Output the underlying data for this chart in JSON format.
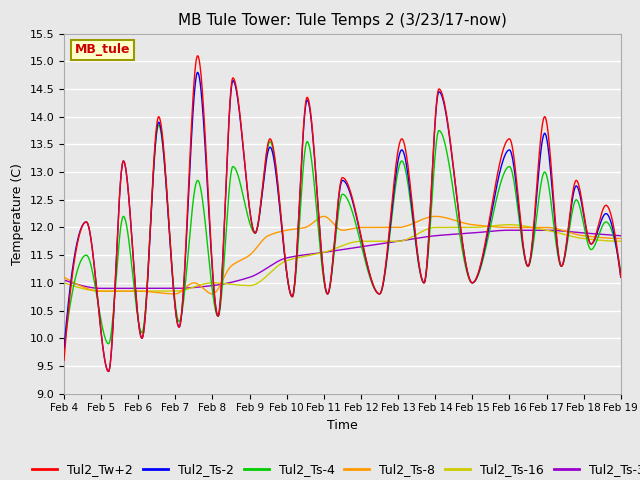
{
  "title": "MB Tule Tower: Tule Temps 2 (3/23/17-now)",
  "xlabel": "Time",
  "ylabel": "Temperature (C)",
  "ylim": [
    9.0,
    15.5
  ],
  "yticks": [
    9.0,
    9.5,
    10.0,
    10.5,
    11.0,
    11.5,
    12.0,
    12.5,
    13.0,
    13.5,
    14.0,
    14.5,
    15.0,
    15.5
  ],
  "x_tick_labels": [
    "Feb 4",
    "Feb 5",
    "Feb 6",
    "Feb 7",
    "Feb 8",
    "Feb 9",
    "Feb 10",
    "Feb 11",
    "Feb 12",
    "Feb 13",
    "Feb 14",
    "Feb 15",
    "Feb 16",
    "Feb 17",
    "Feb 18",
    "Feb 19"
  ],
  "series_colors": {
    "Tul2_Tw+2": "#ff0000",
    "Tul2_Ts-2": "#0000ff",
    "Tul2_Ts-4": "#00cc00",
    "Tul2_Ts-8": "#ff9900",
    "Tul2_Ts-16": "#cccc00",
    "Tul2_Ts-32": "#9900cc"
  },
  "bg_color": "#e8e8e8",
  "plot_bg_color": "#e8e8e8",
  "grid_color": "#ffffff",
  "title_fontsize": 11,
  "axis_fontsize": 9,
  "legend_fontsize": 9,
  "annotation_text": "MB_tule",
  "annotation_color": "#cc0000",
  "annotation_bg": "#ffffcc",
  "annotation_border": "#999900",
  "peak_days": [
    4.6,
    5.6,
    6.55,
    7.6,
    8.55,
    9.55,
    10.55,
    11.5,
    13.1,
    14.1,
    16.0,
    16.95,
    17.8,
    18.6
  ],
  "peak_heights_red": [
    12.1,
    13.2,
    14.0,
    15.1,
    14.7,
    13.6,
    14.35,
    12.9,
    13.6,
    14.5,
    13.6,
    14.0,
    12.85,
    12.4
  ],
  "trough_days": [
    4.0,
    5.2,
    6.1,
    7.1,
    8.15,
    9.15,
    10.15,
    11.1,
    12.5,
    13.7,
    15.0,
    16.5,
    17.4,
    18.2,
    19.0
  ],
  "trough_heights_red": [
    9.6,
    9.4,
    10.0,
    10.2,
    10.4,
    11.9,
    10.75,
    10.8,
    10.8,
    11.0,
    11.0,
    11.3,
    11.3,
    11.7,
    11.1
  ]
}
